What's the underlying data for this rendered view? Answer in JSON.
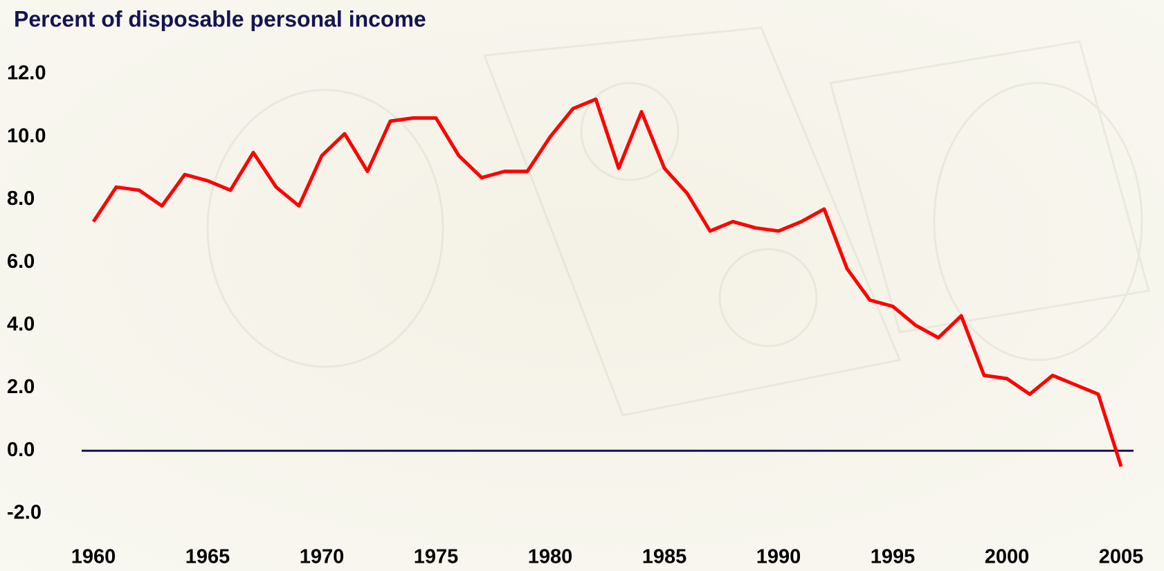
{
  "chart_data": {
    "type": "line",
    "title": "Percent of disposable personal income",
    "x": [
      1960,
      1961,
      1962,
      1963,
      1964,
      1965,
      1966,
      1967,
      1968,
      1969,
      1970,
      1971,
      1972,
      1973,
      1974,
      1975,
      1976,
      1977,
      1978,
      1979,
      1980,
      1981,
      1982,
      1983,
      1984,
      1985,
      1986,
      1987,
      1988,
      1989,
      1990,
      1991,
      1992,
      1993,
      1994,
      1995,
      1996,
      1997,
      1998,
      1999,
      2000,
      2001,
      2002,
      2003,
      2004,
      2005
    ],
    "series": [
      {
        "color": "#ff0000",
        "values": [
          7.3,
          8.4,
          8.3,
          7.8,
          8.8,
          8.6,
          8.3,
          9.5,
          8.4,
          7.8,
          9.4,
          10.1,
          8.9,
          10.5,
          10.6,
          10.6,
          9.4,
          8.7,
          8.9,
          8.9,
          10.0,
          10.9,
          11.2,
          9.0,
          10.8,
          9.0,
          8.2,
          7.0,
          7.3,
          7.1,
          7.0,
          7.3,
          7.7,
          5.8,
          4.8,
          4.6,
          4.0,
          3.6,
          4.3,
          2.4,
          2.3,
          1.8,
          2.4,
          2.1,
          1.8,
          -0.5
        ]
      }
    ],
    "xlim": [
      1960,
      2005
    ],
    "xticks": [
      1960,
      1965,
      1970,
      1975,
      1980,
      1985,
      1990,
      1995,
      2000,
      2005
    ],
    "ylim": [
      -2,
      12
    ],
    "yticks": [
      {
        "value": -2,
        "label": "-2.0"
      },
      {
        "value": 0,
        "label": "0.0"
      },
      {
        "value": 2,
        "label": "2.0"
      },
      {
        "value": 4,
        "label": "4.0"
      },
      {
        "value": 6,
        "label": "6.0"
      },
      {
        "value": 8,
        "label": "8.0"
      },
      {
        "value": 10,
        "label": "10.0"
      },
      {
        "value": 12,
        "label": "12.0"
      }
    ],
    "zero_line": true
  }
}
